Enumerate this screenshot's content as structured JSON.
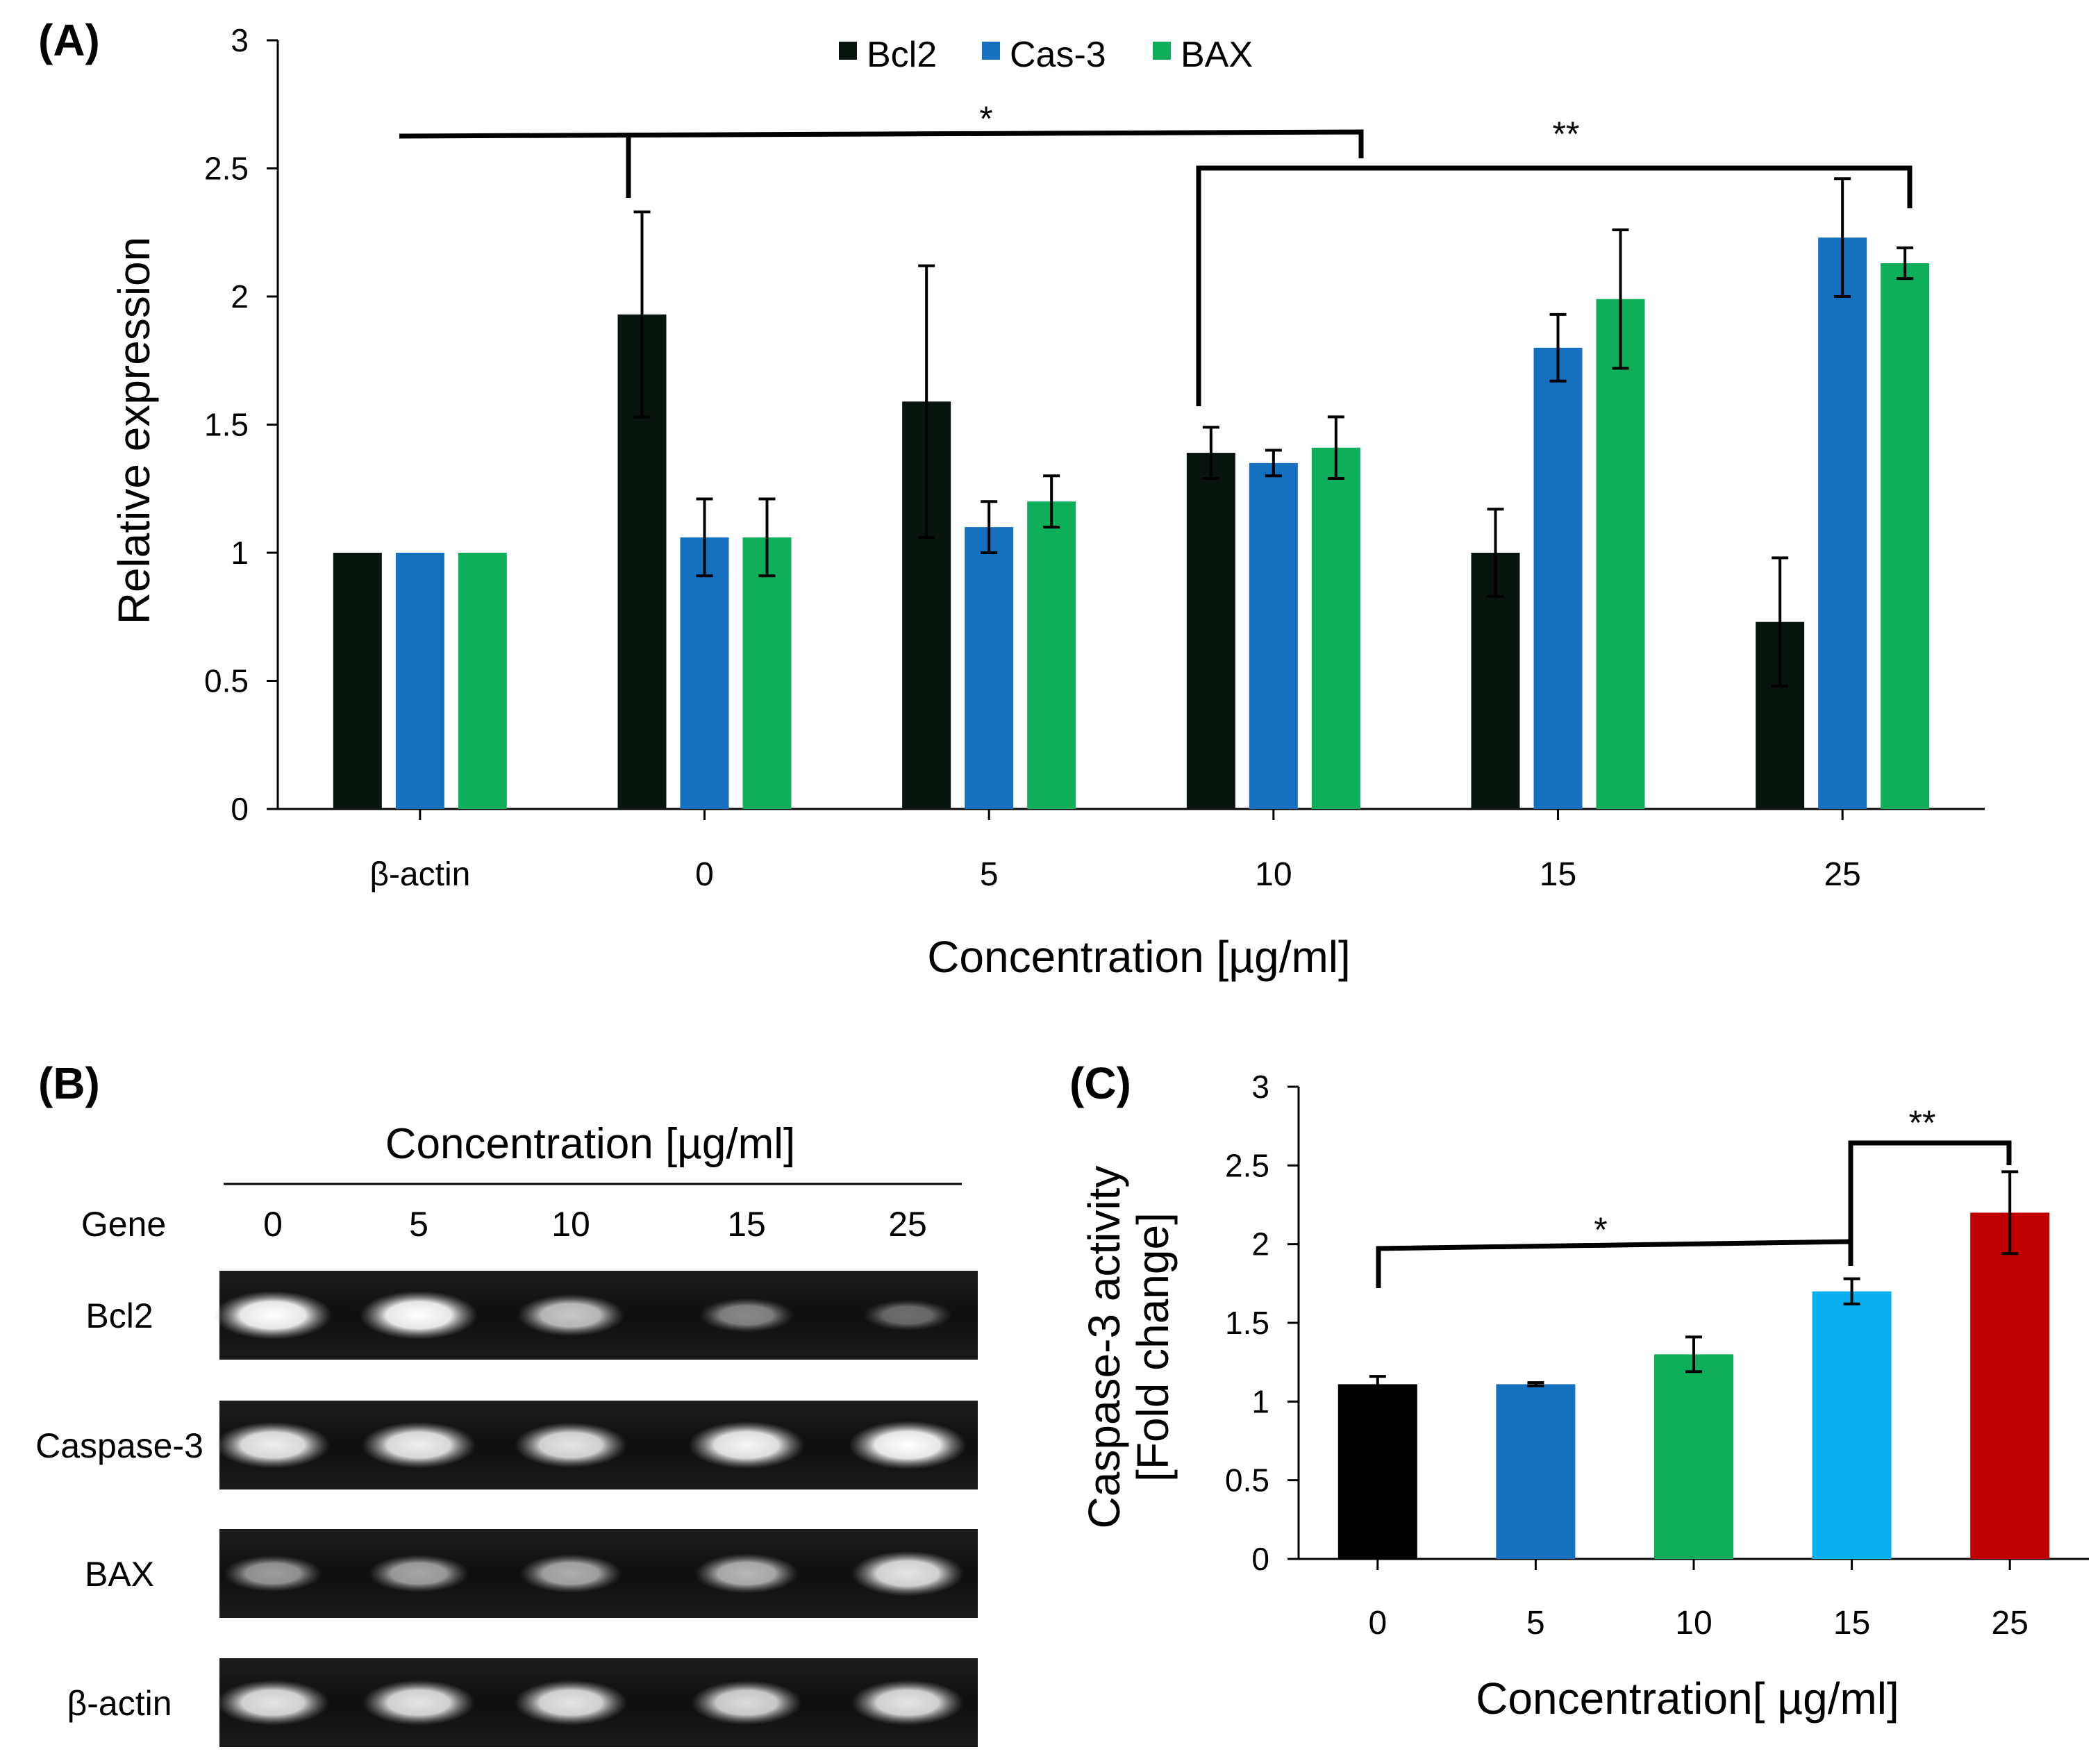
{
  "chart_data": [
    {
      "panel": "(A)",
      "type": "bar",
      "title": "",
      "xlabel": "Concentration [µg/ml]",
      "ylabel": "Relative expression",
      "ylim": [
        0,
        3
      ],
      "yticks": [
        "0",
        "0.5",
        "1",
        "1.5",
        "2",
        "2.5",
        "3"
      ],
      "ytick_values": [
        0,
        0.5,
        1,
        1.5,
        2,
        2.5,
        3
      ],
      "categories": [
        "β-actin",
        "0",
        "5",
        "10",
        "15",
        "25"
      ],
      "legend": "top-center",
      "series": [
        {
          "name": "Bcl2",
          "color": "#0a140e",
          "values": [
            1.0,
            1.93,
            1.59,
            1.39,
            1.0,
            0.73
          ],
          "errors": [
            0,
            0.4,
            0.53,
            0.1,
            0.17,
            0.25
          ]
        },
        {
          "name": "Cas-3",
          "color": "#1570c0",
          "values": [
            1.0,
            1.06,
            1.1,
            1.35,
            1.8,
            2.23
          ],
          "errors": [
            0,
            0.15,
            0.1,
            0.05,
            0.13,
            0.23
          ]
        },
        {
          "name": "BAX",
          "color": "#0fae5a",
          "values": [
            1.0,
            1.06,
            1.2,
            1.41,
            1.99,
            2.13
          ],
          "errors": [
            0,
            0.15,
            0.1,
            0.12,
            0.27,
            0.06
          ]
        }
      ],
      "annotations": [
        "*",
        "**"
      ]
    },
    {
      "panel": "(C)",
      "type": "bar",
      "title": "",
      "xlabel": "Concentration[ µg/ml]",
      "ylabel_line1": "Caspase-3 activity",
      "ylabel_line2": "[Fold change]",
      "ylim": [
        0,
        3
      ],
      "yticks": [
        "0",
        "0.5",
        "1",
        "1.5",
        "2",
        "2.5",
        "3"
      ],
      "ytick_values": [
        0,
        0.5,
        1,
        1.5,
        2,
        2.5,
        3
      ],
      "categories": [
        "0",
        "5",
        "10",
        "15",
        "25"
      ],
      "values": [
        1.11,
        1.11,
        1.3,
        1.7,
        2.2
      ],
      "errors": [
        0.05,
        0.01,
        0.11,
        0.08,
        0.26
      ],
      "colors": [
        "#000000",
        "#1570c0",
        "#0fae5a",
        "#0ab0ef",
        "#c00000"
      ],
      "annotations": [
        "*",
        "**"
      ]
    }
  ],
  "gel": {
    "panel": "(B)",
    "header": "Concentration [µg/ml]",
    "gene_label": "Gene",
    "lanes": [
      "0",
      "5",
      "10",
      "15",
      "25"
    ],
    "genes": [
      {
        "name": "Bcl2",
        "intensity": [
          1.0,
          1.0,
          0.7,
          0.35,
          0.2
        ]
      },
      {
        "name": "Caspase-3",
        "intensity": [
          0.9,
          0.9,
          0.85,
          0.95,
          1.0
        ]
      },
      {
        "name": "BAX",
        "intensity": [
          0.45,
          0.5,
          0.55,
          0.6,
          0.85
        ]
      },
      {
        "name": "β-actin",
        "intensity": [
          0.85,
          0.85,
          0.85,
          0.8,
          0.85
        ]
      }
    ]
  }
}
